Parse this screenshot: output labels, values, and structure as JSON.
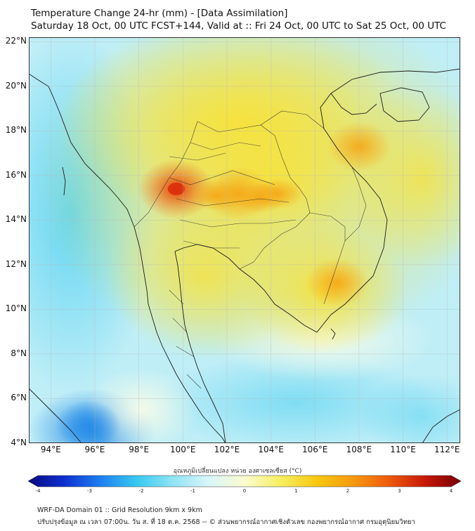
{
  "header": {
    "title_line1": "Temperature Change 24-hr (mm) - [Data Assimilation]",
    "title_line2": "Saturday 18 Oct, 00 UTC FCST+144, Valid at :: Fri 24 Oct, 00 UTC to Sat 25 Oct, 00 UTC"
  },
  "map": {
    "lat_labels": [
      "22°N",
      "20°N",
      "18°N",
      "16°N",
      "14°N",
      "12°N",
      "10°N",
      "8°N",
      "6°N",
      "4°N"
    ],
    "lon_labels": [
      "94°E",
      "96°E",
      "98°E",
      "100°E",
      "102°E",
      "104°E",
      "106°E",
      "108°E",
      "110°E",
      "112°E"
    ],
    "lat_range": [
      4,
      22.2
    ],
    "lon_range": [
      93,
      112.6
    ],
    "field": "Temperature change 24-hr",
    "hotspots": [
      {
        "name": "west-thailand-max",
        "lon": 99.7,
        "lat": 15.4,
        "value": 2.6
      },
      {
        "name": "northeast-thailand",
        "lon": 102.5,
        "lat": 15.2,
        "value": 2.2
      },
      {
        "name": "laos-vietnam",
        "lon": 108.0,
        "lat": 17.3,
        "value": 2.0
      },
      {
        "name": "cambodia",
        "lon": 107.0,
        "lat": 11.2,
        "value": 1.9
      },
      {
        "name": "andaman-min",
        "lon": 95.7,
        "lat": 4.8,
        "value": -2.0
      }
    ]
  },
  "colorbar": {
    "label": "อุณหภูมิเปลี่ยนแปลง หน่วย องศาเซลเซียส (°C)",
    "ticks": [
      "-4",
      "-3",
      "-2",
      "-1",
      "0",
      "1",
      "2",
      "3",
      "4"
    ],
    "min": -4,
    "max": 4,
    "colors": [
      "#0a0a80",
      "#0d30d0",
      "#1e7ff0",
      "#38c8f0",
      "#8ee4f5",
      "#d8f6fa",
      "#fbfbd0",
      "#f7ef60",
      "#f7c810",
      "#f59a10",
      "#ef5a0c",
      "#c81808",
      "#780000"
    ]
  },
  "footer": {
    "line1": "WRF-DA Domain 01 :: Grid Resolution 9km x 9km",
    "line2": "ปรับปรุงข้อมูล ณ เวลา 07:00น. วัน ส. ที่ 18 ต.ค. 2568 -- © ส่วนพยากรณ์อากาศเชิงตัวเลข กองพยากรณ์อากาศ กรมอุตุนิยมวิทยา"
  }
}
